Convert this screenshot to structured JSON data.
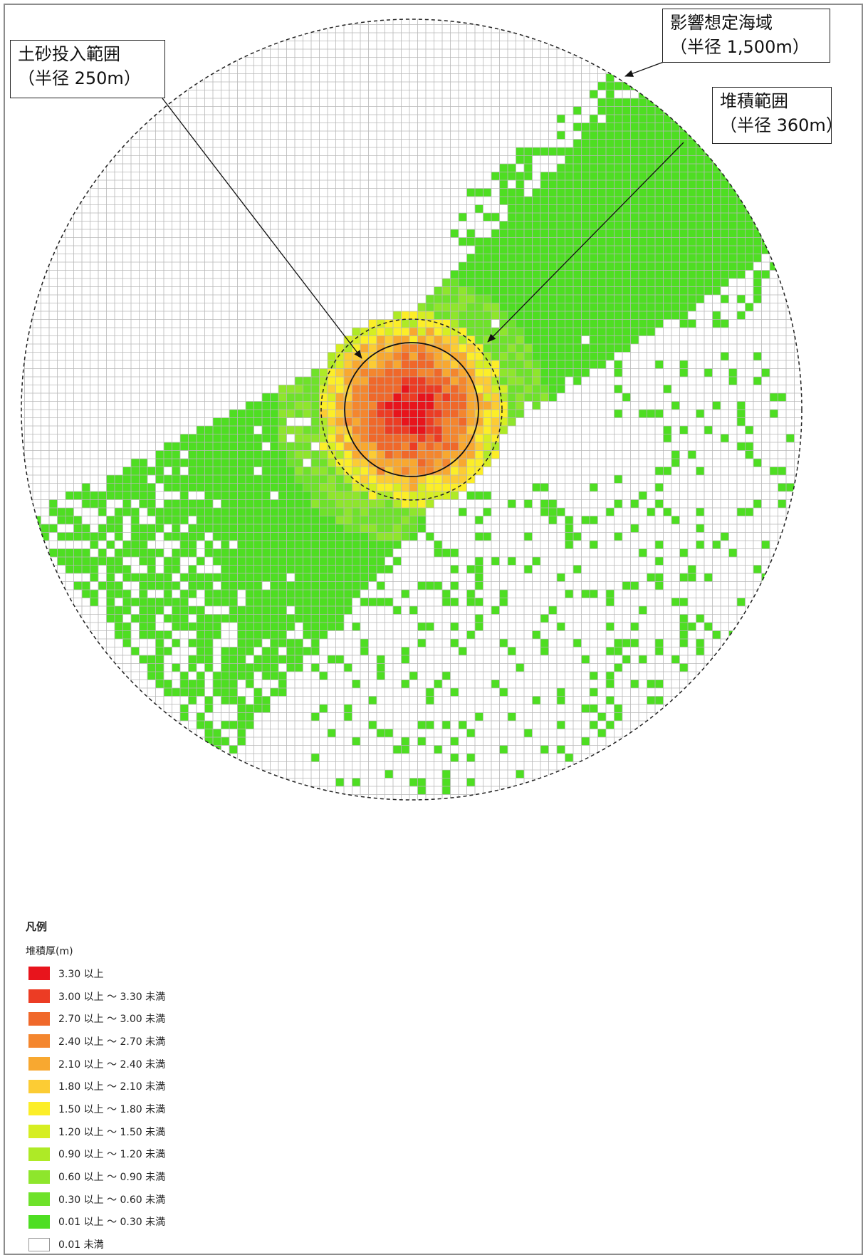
{
  "callouts": {
    "impact_area": {
      "line1": "影響想定海域",
      "line2": "（半径 1,500m）"
    },
    "dump_area": {
      "line1": "土砂投入範囲",
      "line2": "（半径 250m）"
    },
    "deposit_area": {
      "line1": "堆積範囲",
      "line2": "（半径 360m）"
    }
  },
  "legend": {
    "title": "凡例",
    "subtitle": "堆積厚(m)",
    "items": [
      {
        "label": "3.30 以上",
        "color": "#e8141c"
      },
      {
        "label": "3.00 以上 ～ 3.30 未満",
        "color": "#ec3c24"
      },
      {
        "label": "2.70 以上 ～ 3.00 未満",
        "color": "#f0682a"
      },
      {
        "label": "2.40 以上 ～ 2.70 未満",
        "color": "#f4862e"
      },
      {
        "label": "2.10 以上 ～ 2.40 未満",
        "color": "#f8a830"
      },
      {
        "label": "1.80 以上 ～ 2.10 未満",
        "color": "#fccc34"
      },
      {
        "label": "1.50 以上 ～ 1.80 未満",
        "color": "#fcee28"
      },
      {
        "label": "1.20 以上 ～ 1.50 未満",
        "color": "#d6ee22"
      },
      {
        "label": "0.90 以上 ～ 1.20 未満",
        "color": "#aeea26"
      },
      {
        "label": "0.60 以上 ～ 0.90 未満",
        "color": "#8ee62c"
      },
      {
        "label": "0.30 以上 ～ 0.60 未満",
        "color": "#6ee22a"
      },
      {
        "label": "0.01 以上 ～ 0.30 未満",
        "color": "#4ede22"
      },
      {
        "label": "0.01 未満",
        "color": "#ffffff"
      }
    ]
  }
}
